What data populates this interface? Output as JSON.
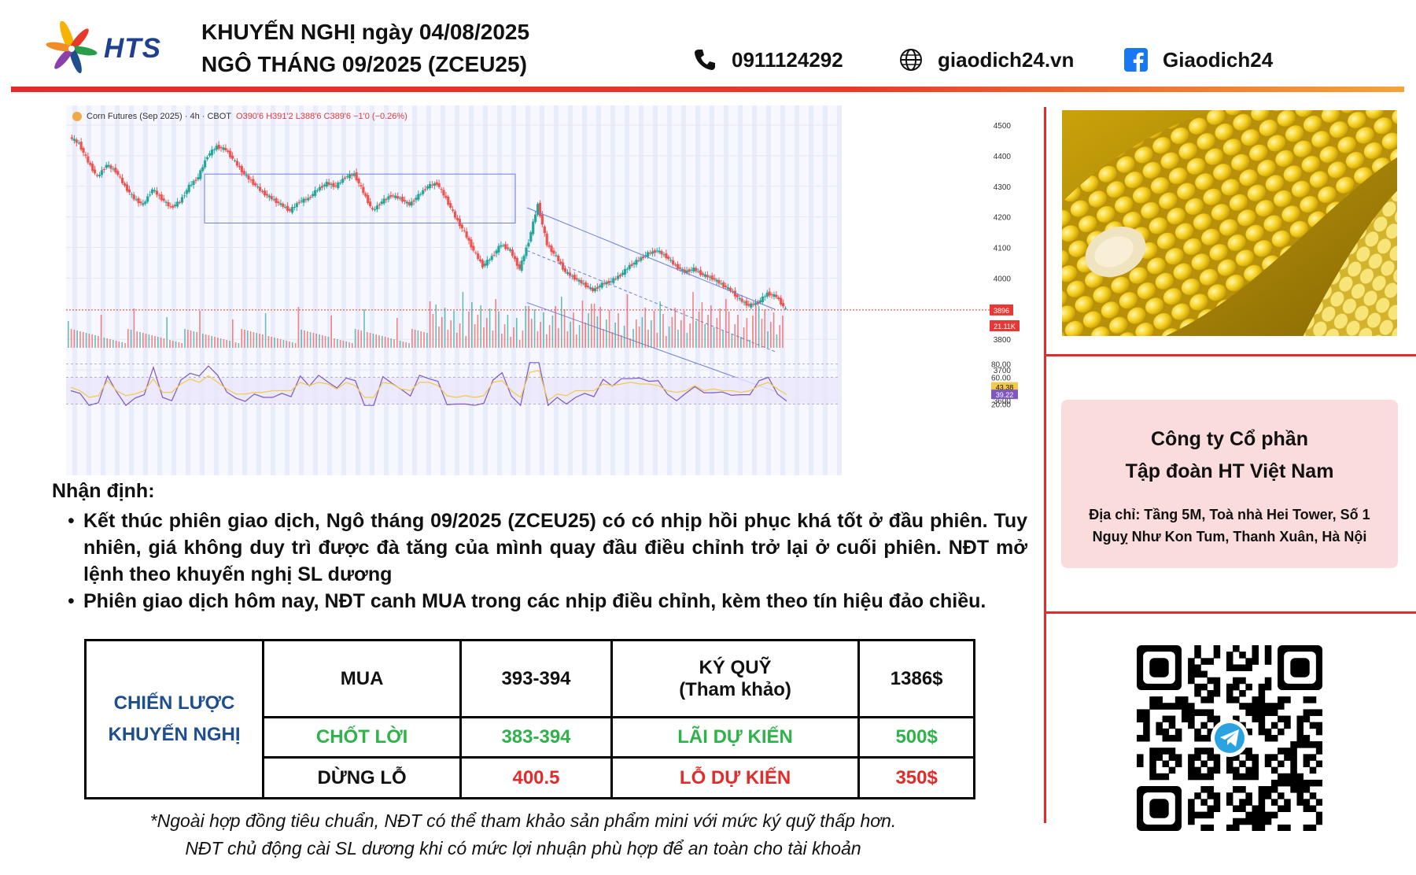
{
  "brand": {
    "logo_text": "HTS"
  },
  "header": {
    "title_line1": "KHUYẾN NGHỊ ngày 04/08/2025",
    "title_line2": "NGÔ THÁNG 09/2025 (ZCEU25)",
    "phone": "0911124292",
    "website": "giaodich24.vn",
    "facebook": "Giaodich24",
    "icons": {
      "phone": "phone-icon",
      "web": "globe-icon",
      "facebook": "facebook-icon"
    }
  },
  "chart_data": {
    "type": "candlestick",
    "legend": "Corn Futures (Sep 2025) · 4h · CBOT",
    "ohlc_text": "O390'6 H391'2 L388'6 C389'6 −1'0 (−0.26%)",
    "yticks": [
      "4500",
      "4400",
      "4300",
      "4200",
      "4100",
      "4000",
      "3896",
      "3800",
      "3700",
      "3600"
    ],
    "last_price_label": "3896",
    "volume_label": "21.11K",
    "ylim": [
      3600,
      4500
    ],
    "price_path": [
      4460,
      4440,
      4380,
      4330,
      4370,
      4350,
      4300,
      4260,
      4240,
      4290,
      4260,
      4230,
      4250,
      4300,
      4330,
      4400,
      4430,
      4420,
      4380,
      4340,
      4310,
      4280,
      4260,
      4240,
      4220,
      4250,
      4260,
      4290,
      4310,
      4300,
      4330,
      4340,
      4280,
      4220,
      4250,
      4270,
      4260,
      4240,
      4270,
      4300,
      4310,
      4260,
      4200,
      4150,
      4090,
      4040,
      4070,
      4110,
      4090,
      4030,
      4120,
      4240,
      4110,
      4070,
      4020,
      4000,
      3980,
      3960,
      3980,
      3990,
      4010,
      4040,
      4060,
      4080,
      4090,
      4070,
      4040,
      4020,
      4030,
      4010,
      4000,
      3980,
      3960,
      3930,
      3910,
      3920,
      3950,
      3940,
      3897
    ],
    "rsi_ticks": [
      "80.00",
      "60.00",
      "43.38",
      "39.22",
      "20.00"
    ],
    "rsi_levels": [
      80,
      60,
      20
    ],
    "rsi_value": 43.38,
    "rsi_ma_value": 39.22
  },
  "analysis": {
    "heading": "Nhận định:",
    "bullets": [
      "Kết thúc phiên giao dịch, Ngô tháng 09/2025 (ZCEU25) có có nhịp hồi phục khá tốt ở đầu phiên. Tuy nhiên, giá không duy trì được đà tăng của mình quay đầu điều chỉnh trở lại ở cuối phiên. NĐT mở lệnh theo khuyến nghị SL dương",
      "Phiên giao dịch hôm nay, NĐT canh MUA trong các nhịp điều chỉnh, kèm theo tín hiệu đảo chiều."
    ]
  },
  "strategy": {
    "label_line1": "CHIẾN LƯỢC",
    "label_line2": "KHUYẾN NGHỊ",
    "rows": [
      {
        "a": "MUA",
        "b": "393-394",
        "c1": "KÝ QUỸ",
        "c2": "(Tham khảo)",
        "d": "1386$"
      },
      {
        "a": "CHỐT LỜI",
        "b": "383-394",
        "c1": "LÃI DỰ KIẾN",
        "c2": "",
        "d": "500$"
      },
      {
        "a": "DỪNG LỖ",
        "b": "400.5",
        "c1": "LỖ DỰ KIẾN",
        "c2": "",
        "d": "350$"
      }
    ]
  },
  "footnote": {
    "line1": "*Ngoài hợp đồng tiêu chuẩn, NĐT có thể tham khảo sản phẩm mini với mức ký quỹ thấp hơn.",
    "line2": "NĐT chủ động cài SL dương khi có mức lợi nhuận phù hợp để an toàn cho tài khoản"
  },
  "company": {
    "name_line1": "Công ty Cổ phần",
    "name_line2": "Tập đoàn HT Việt Nam",
    "address_line1": "Địa chỉ: Tầng 5M, Toà nhà Hei Tower, Số 1",
    "address_line2": "Nguỵ Như Kon Tum, Thanh Xuân, Hà Nội"
  },
  "colors": {
    "accent_red": "#e32b2b",
    "brand_blue": "#1f4e8f",
    "profit_green": "#2fb24a",
    "company_bg": "#fbdcdc"
  }
}
